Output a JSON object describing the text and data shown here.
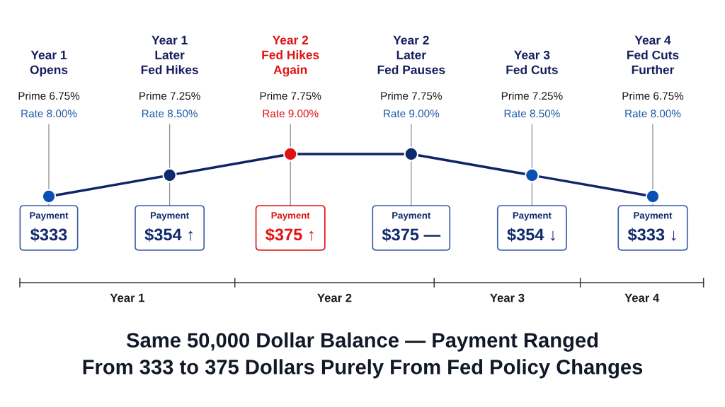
{
  "chart_data": {
    "type": "line",
    "title": "Same 50,000 Dollar Balance — Payment Ranged\nFrom 333 to 375 Dollars Purely From Fed Policy Changes",
    "categories": [
      "Year 1\nOpens",
      "Year 1\nLater\nFed Hikes",
      "Year 2\nFed Hikes\nAgain",
      "Year 2\nLater\nFed Pauses",
      "Year 3\nFed Cuts",
      "Year 4\nFed Cuts\nFurther"
    ],
    "series": [
      {
        "color": "#0f2468",
        "colors": [
          "#0a4fb4",
          "#0d2a6e",
          "#e01212",
          "#0d2a6e",
          "#0a4fb4",
          "#0a4fb4"
        ],
        "values": [
          8.0,
          8.5,
          9.0,
          9.0,
          8.5,
          8.0
        ],
        "value_labels": [
          "Rate 8.00%",
          "Rate 8.50%",
          "Rate 9.00%",
          "Rate 9.00%",
          "Rate 8.50%",
          "Rate 8.00%"
        ]
      }
    ],
    "marker": "circle",
    "line_style": "solid",
    "tick_labels": "x",
    "grid": "x",
    "annotations": [
      "Prime 6.75%",
      "Prime 7.25%",
      "Prime 7.75%",
      "Prime 7.75%",
      "Prime 7.25%",
      "Prime 6.75%",
      "Payment\n$333",
      "Payment\n$354 ↑",
      "Payment\n$375 ↑",
      "Payment\n$375 —",
      "Payment\n$354 ↓",
      "Payment\n$333 ↓",
      "Year 1",
      "Year 2",
      "Year 3",
      "Year 4"
    ]
  }
}
